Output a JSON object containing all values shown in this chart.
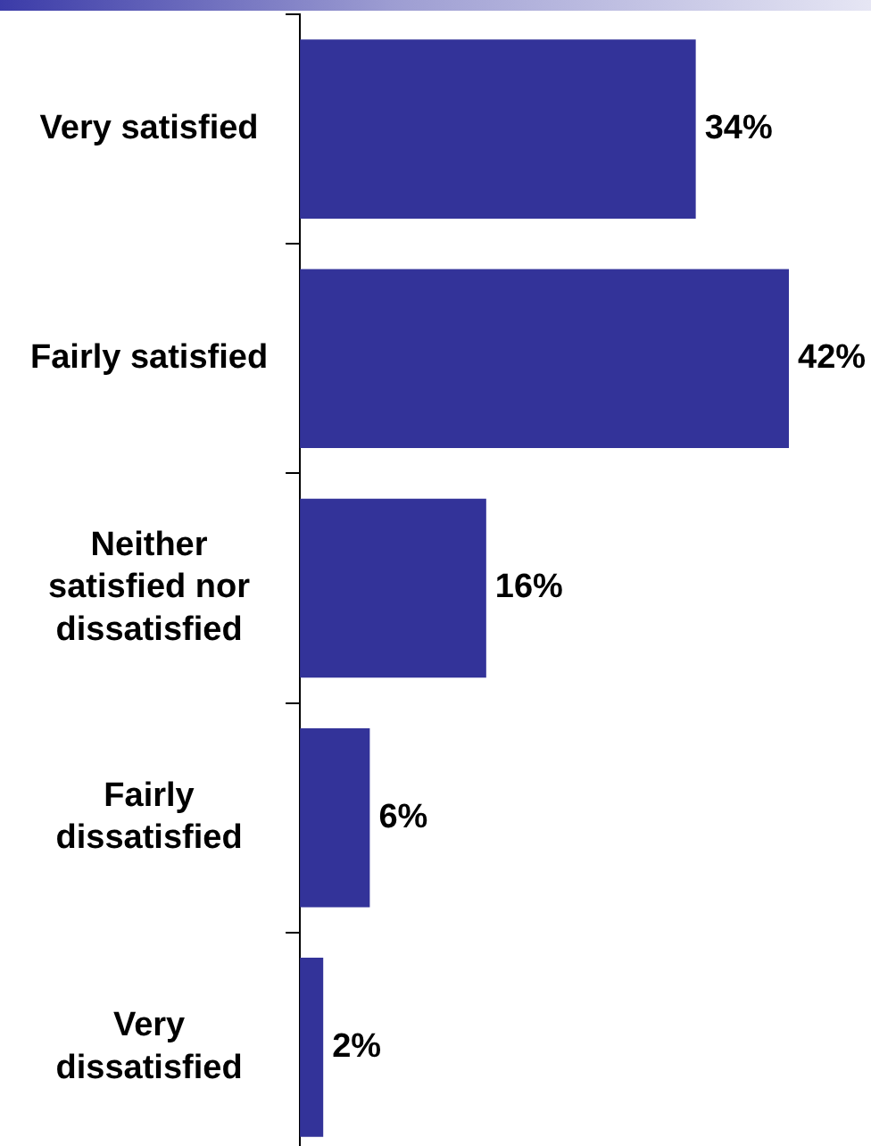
{
  "chart_data": {
    "type": "bar",
    "orientation": "horizontal",
    "categories": [
      "Very satisfied",
      "Fairly satisfied",
      "Neither satisfied nor dissatisfied",
      "Fairly dissatisfied",
      "Very dissatisfied"
    ],
    "values": [
      34,
      42,
      16,
      6,
      2
    ],
    "color": "#333399",
    "value_labels": [
      "34%",
      "42%",
      "16%",
      "6%",
      "2%"
    ]
  }
}
